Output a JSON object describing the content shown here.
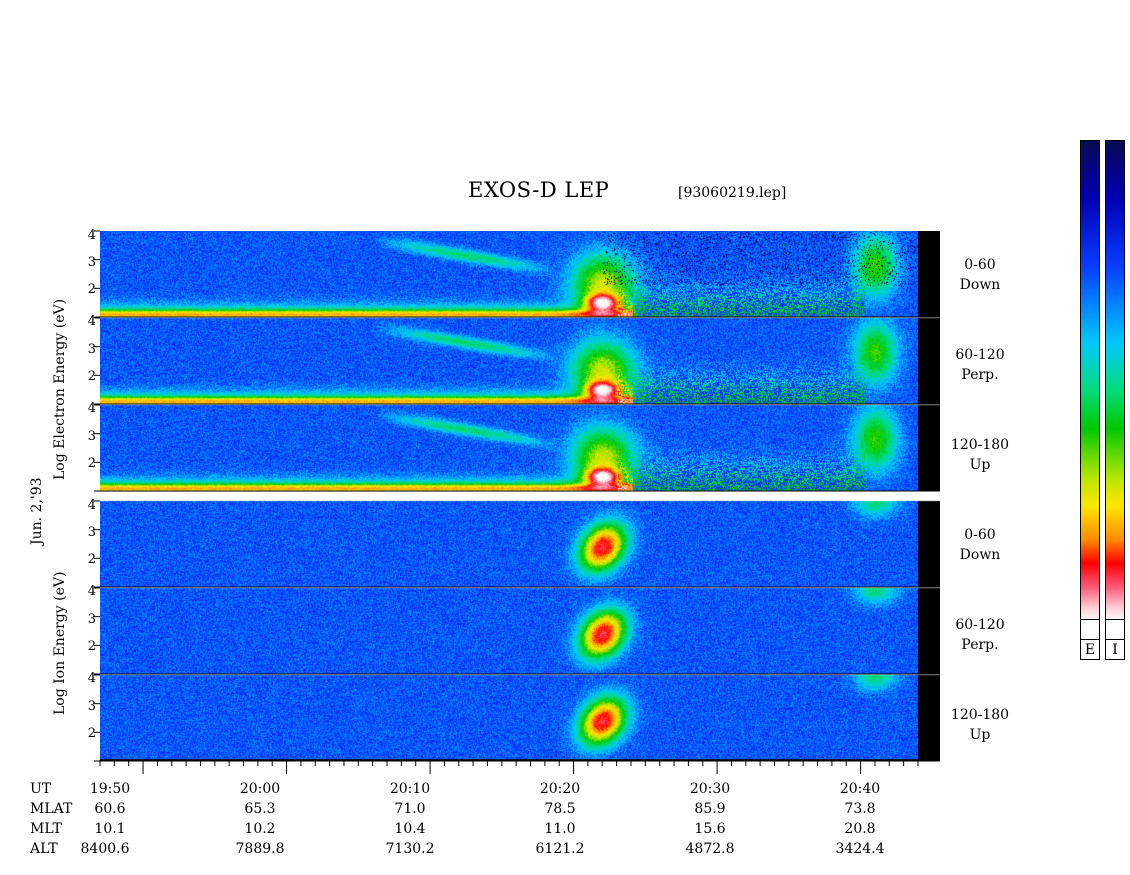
{
  "header": {
    "title": "EXOS-D LEP",
    "file": "[93060219.lep]"
  },
  "date_label": "Jun. 2,'93",
  "electron_group": {
    "ylabel_parts": [
      "Log",
      "Electron",
      "Energy",
      "(eV)"
    ],
    "panels": [
      {
        "id": "e-0-60",
        "range": "0-60",
        "dir": "Down",
        "yticks": [
          "4",
          "3",
          "2"
        ]
      },
      {
        "id": "e-60-120",
        "range": "60-120",
        "dir": "Perp.",
        "yticks": [
          "4",
          "3",
          "2"
        ]
      },
      {
        "id": "e-120-180",
        "range": "120-180",
        "dir": "Up",
        "yticks": [
          "4",
          "3",
          "2"
        ]
      }
    ]
  },
  "ion_group": {
    "ylabel_parts": [
      "Log",
      "Ion",
      "Energy",
      "(eV)"
    ],
    "panels": [
      {
        "id": "i-0-60",
        "range": "0-60",
        "dir": "Down",
        "yticks": [
          "4",
          "3",
          "2"
        ]
      },
      {
        "id": "i-60-120",
        "range": "60-120",
        "dir": "Perp.",
        "yticks": [
          "4",
          "3",
          "2"
        ]
      },
      {
        "id": "i-120-180",
        "range": "120-180",
        "dir": "Up",
        "yticks": [
          "4",
          "3",
          "2"
        ]
      }
    ]
  },
  "ephemeris": {
    "rows": [
      "UT",
      "MLAT",
      "MLT",
      "ALT"
    ],
    "columns": [
      {
        "UT": "19:50",
        "MLAT": "60.6",
        "MLT": "10.1",
        "ALT": "8400.6"
      },
      {
        "UT": "20:00",
        "MLAT": "65.3",
        "MLT": "10.2",
        "ALT": "7889.8"
      },
      {
        "UT": "20:10",
        "MLAT": "71.0",
        "MLT": "10.4",
        "ALT": "7130.2"
      },
      {
        "UT": "20:20",
        "MLAT": "78.5",
        "MLT": "11.0",
        "ALT": "6121.2"
      },
      {
        "UT": "20:30",
        "MLAT": "85.9",
        "MLT": "15.6",
        "ALT": "4872.8"
      },
      {
        "UT": "20:40",
        "MLAT": "73.8",
        "MLT": "20.8",
        "ALT": "3424.4"
      }
    ]
  },
  "colorbars": [
    {
      "label": "E"
    },
    {
      "label": "I"
    }
  ],
  "chart_data": {
    "type": "heatmap",
    "title": "EXOS-D LEP",
    "x_unit": "UT (Jun. 2,'93)",
    "x_range": [
      "19:47",
      "20:44"
    ],
    "x_ticks": [
      "19:50",
      "20:00",
      "20:10",
      "20:20",
      "20:30",
      "20:40"
    ],
    "y_range_log_eV": [
      1,
      4
    ],
    "y_ticks": [
      2,
      3,
      4
    ],
    "panels": [
      {
        "species": "Electron",
        "pitch_angle": "0-60",
        "direction": "Down"
      },
      {
        "species": "Electron",
        "pitch_angle": "60-120",
        "direction": "Perp."
      },
      {
        "species": "Electron",
        "pitch_angle": "120-180",
        "direction": "Up"
      },
      {
        "species": "Ion",
        "pitch_angle": "0-60",
        "direction": "Down"
      },
      {
        "species": "Ion",
        "pitch_angle": "60-120",
        "direction": "Perp."
      },
      {
        "species": "Ion",
        "pitch_angle": "120-180",
        "direction": "Up"
      }
    ],
    "features": {
      "electron_low_energy_band_logE": 1.1,
      "electron_arc_start_UT": "20:06",
      "electron_arc_end_UT": "20:19",
      "electron_arc_logE_start": 3.7,
      "electron_arc_logE_end": 2.6,
      "electron_burst_UT": "20:22",
      "electron_burst_logE": 1.5,
      "ion_burst_UT": "20:22",
      "ion_burst_logE": 2.4,
      "late_activity_UT": "20:41"
    },
    "colorscale": [
      "#0a0a55",
      "#0000b4",
      "#0a3cff",
      "#00c8ff",
      "#00dc7a",
      "#00c800",
      "#b4e600",
      "#ffe600",
      "#ff8c00",
      "#ff0000",
      "#ff5a78",
      "#ffc8d2",
      "#ffffff"
    ]
  }
}
